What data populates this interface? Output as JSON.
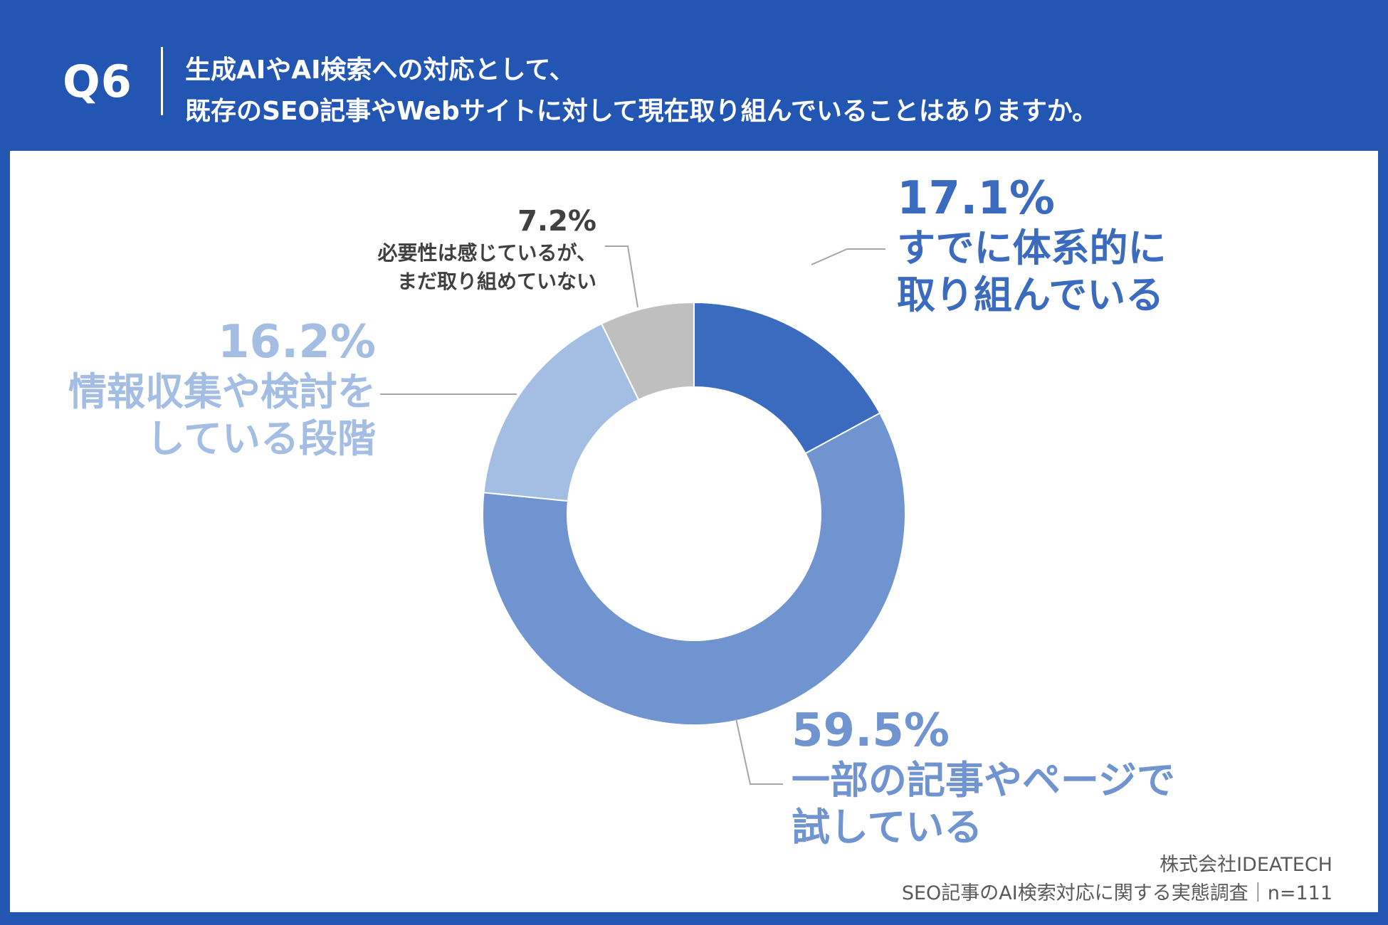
{
  "header": {
    "q_label": "Q6",
    "question_line1": "生成AIやAI検索への対応として、",
    "question_line2": "既存のSEO記事やWebサイトに対して現在取り組んでいることはありますか。"
  },
  "colors": {
    "background": "#2356b3",
    "panel": "#ffffff"
  },
  "chart_data": {
    "type": "pie",
    "variant": "donut",
    "title": "",
    "slices": [
      {
        "pct_label": "17.1%",
        "value": 17.1,
        "line1": "すでに体系的に",
        "line2": "取り組んでいる",
        "color": "#3b6bbf"
      },
      {
        "pct_label": "59.5%",
        "value": 59.5,
        "line1": "一部の記事やページで",
        "line2": "試している",
        "color": "#7094cf"
      },
      {
        "pct_label": "16.2%",
        "value": 16.2,
        "line1": "情報収集や検討を",
        "line2": "している段階",
        "color": "#a3bde3"
      },
      {
        "pct_label": "7.2%",
        "value": 7.2,
        "line1": "必要性は感じているが、",
        "line2": "まだ取り組めていない",
        "color": "#bfbfbf"
      }
    ]
  },
  "credit": {
    "company": "株式会社IDEATECH",
    "survey": "SEO記事のAI検索対応に関する実態調査｜n=111"
  }
}
